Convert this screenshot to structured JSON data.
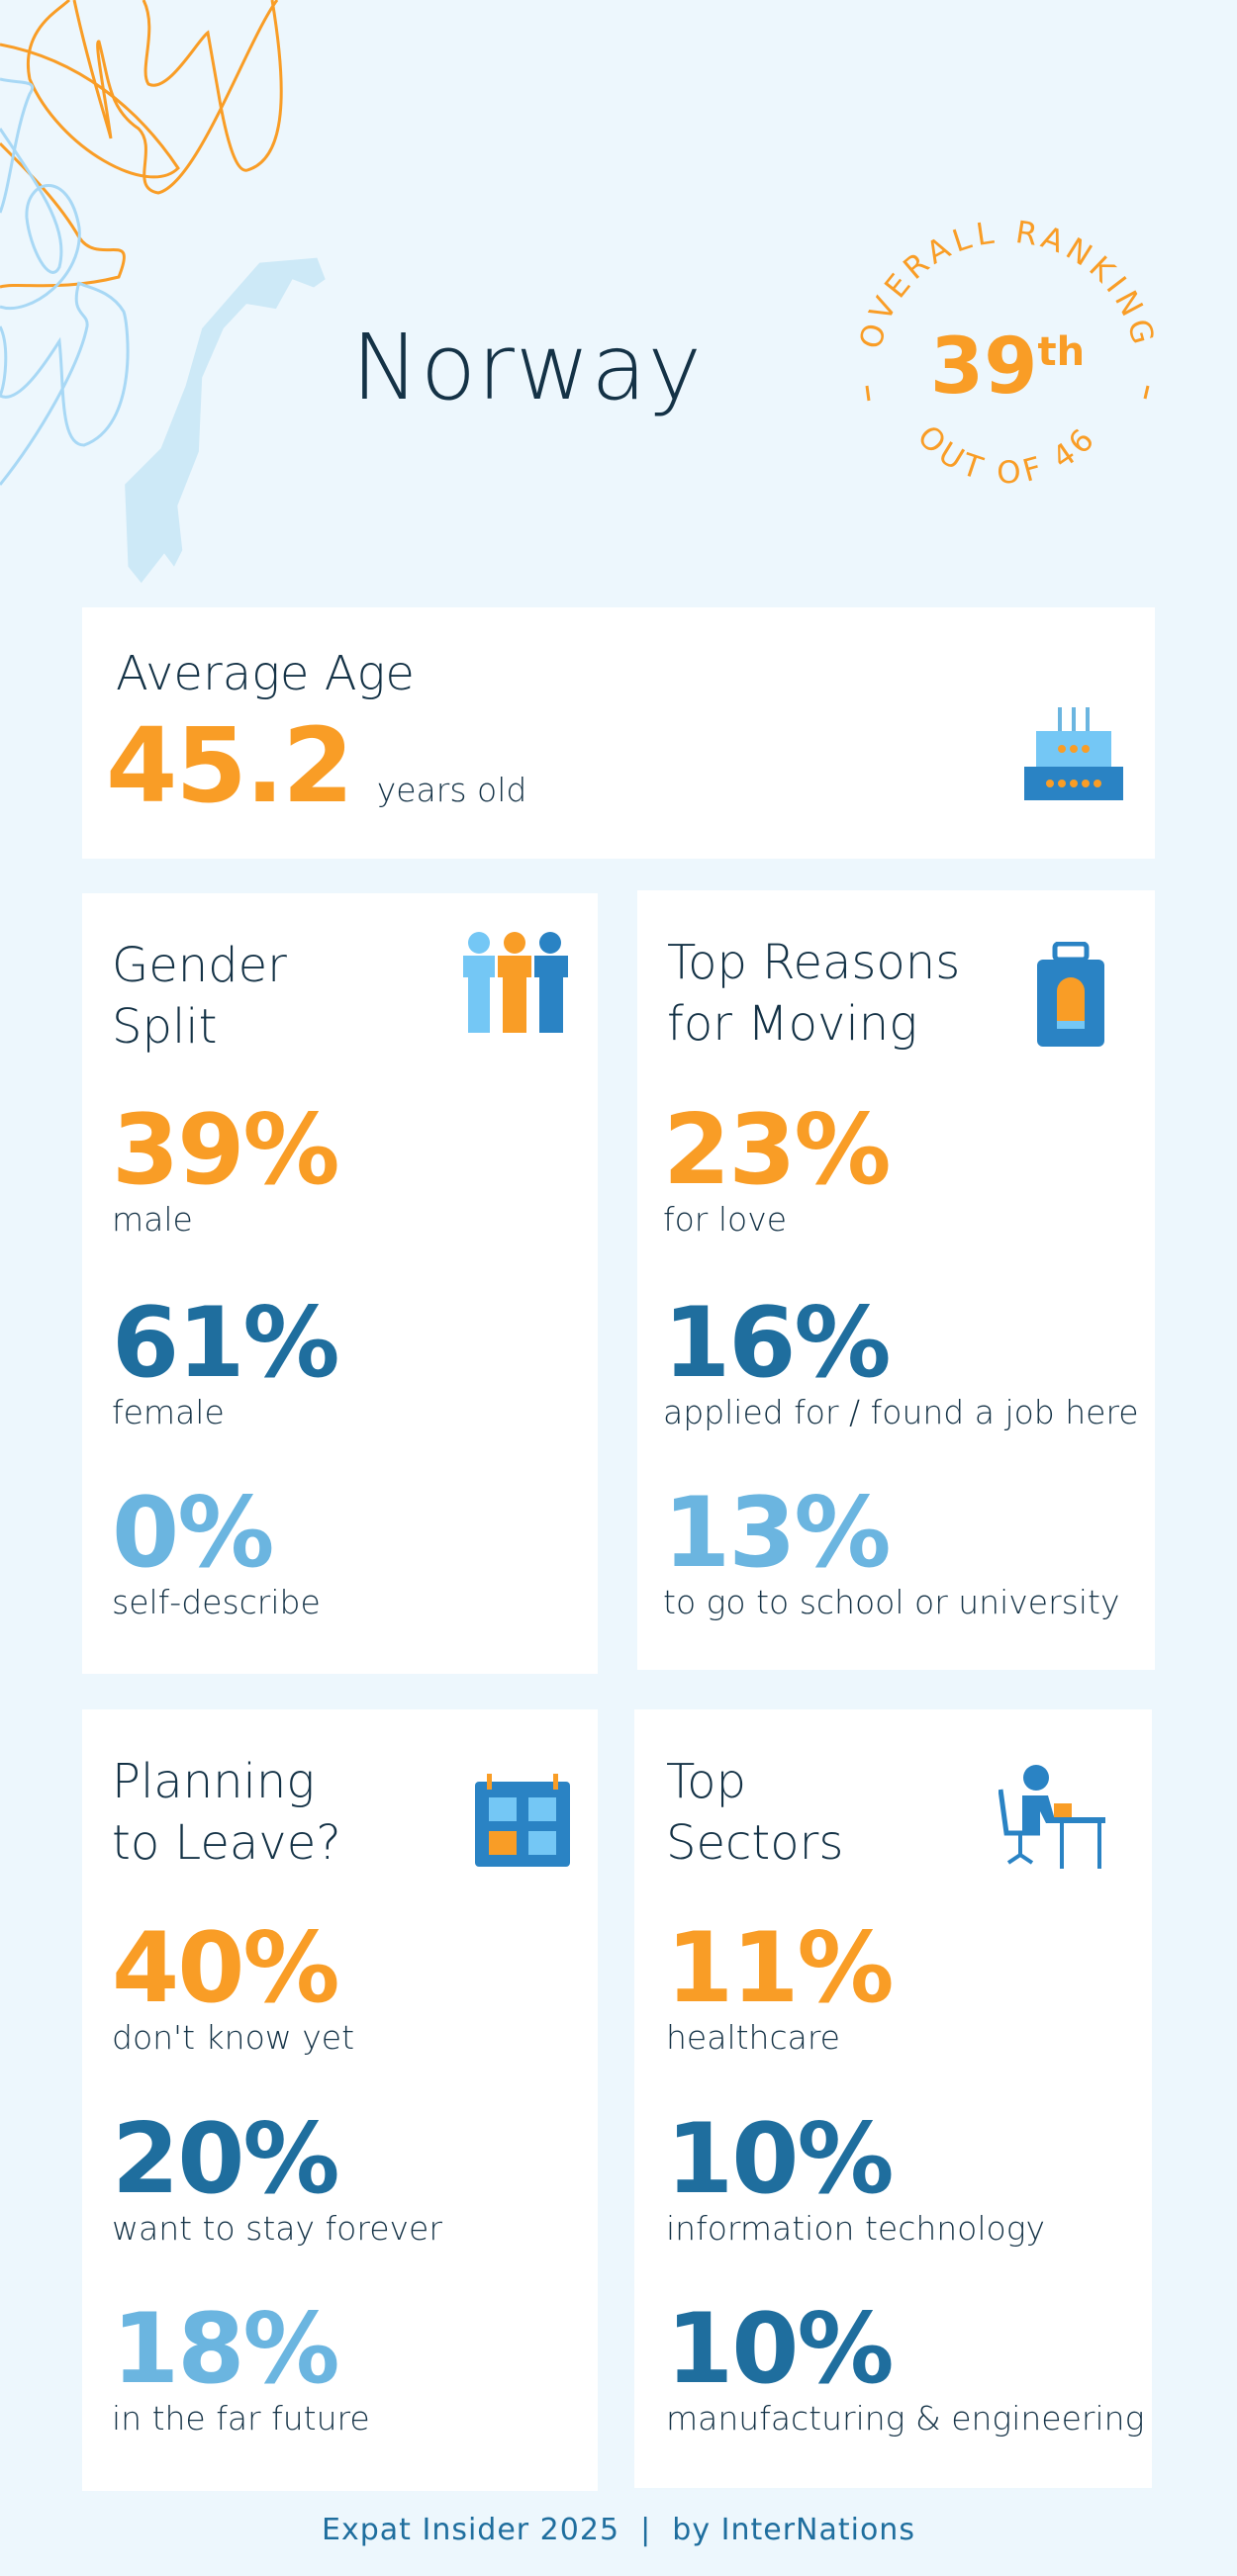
{
  "header": {
    "country": "Norway",
    "ranking_label_top": "OVERALL RANKING",
    "ranking_value": "39",
    "ranking_suffix": "th",
    "ranking_label_bottom": "OUT OF 46"
  },
  "average_age": {
    "title": "Average Age",
    "value": "45.2",
    "unit": "years old",
    "icon": "birthday-cake-icon"
  },
  "gender": {
    "title_1": "Gender",
    "title_2": "Split",
    "icon": "people-icon",
    "stats": [
      {
        "value": "39%",
        "label": "male"
      },
      {
        "value": "61%",
        "label": "female"
      },
      {
        "value": "0%",
        "label": "self-describe"
      }
    ]
  },
  "reasons": {
    "title_1": "Top Reasons",
    "title_2": "for Moving",
    "icon": "suitcase-icon",
    "stats": [
      {
        "value": "23%",
        "label": "for love"
      },
      {
        "value": "16%",
        "label": "applied for / found a job here"
      },
      {
        "value": "13%",
        "label": "to go to school or university"
      }
    ]
  },
  "leave": {
    "title_1": "Planning",
    "title_2": "to Leave?",
    "icon": "calendar-icon",
    "stats": [
      {
        "value": "40%",
        "label": "don't know yet"
      },
      {
        "value": "20%",
        "label": "want to stay forever"
      },
      {
        "value": "18%",
        "label": "in the far future"
      }
    ]
  },
  "sectors": {
    "title_1": "Top",
    "title_2": "Sectors",
    "icon": "office-worker-icon",
    "stats": [
      {
        "value": "11%",
        "label": "healthcare"
      },
      {
        "value": "10%",
        "label": "information technology"
      },
      {
        "value": "10%",
        "label": "manufacturing & engineering"
      }
    ]
  },
  "footer": "Expat Insider 2025  |  by InterNations",
  "colors": {
    "orange": "#f99d26",
    "dark_blue": "#1f6e9e",
    "light_blue": "#6bb5e0",
    "text": "#143246",
    "background": "#edf7fd"
  }
}
